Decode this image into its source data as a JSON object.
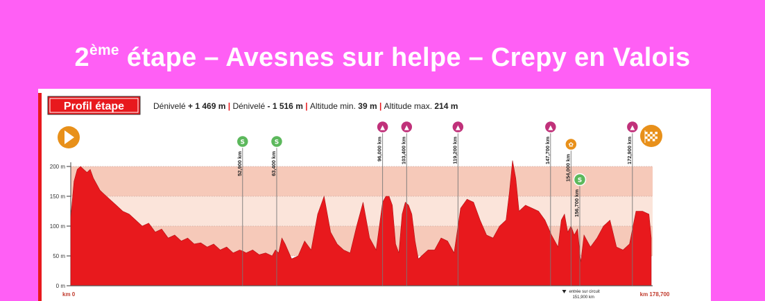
{
  "title": {
    "number": "2",
    "suffix": "ème",
    "rest": " étape – Avesnes sur helpe – Crepy en Valois"
  },
  "colors": {
    "page_background": "#ff5ff5",
    "profile_fill": "#e8191d",
    "band_dark": "#f6c9b9",
    "band_light": "#fbe4da",
    "badge_green": "#5cb85c",
    "badge_pink": "#c0317a",
    "badge_orange": "#e8901a"
  },
  "chart_data": {
    "type": "area",
    "header": {
      "badge": "Profil étape",
      "items": [
        {
          "label": "Dénivelé",
          "sign": "+",
          "value": "1 469 m"
        },
        {
          "label": "Dénivelé",
          "sign": "-",
          "value": "1 516 m"
        },
        {
          "label": "Altitude min.",
          "sign": "",
          "value": "39 m"
        },
        {
          "label": "Altitude max.",
          "sign": "",
          "value": "214 m"
        }
      ]
    },
    "xlim": [
      0,
      178.7
    ],
    "ylim": [
      0,
      200
    ],
    "y_ticks": [
      {
        "value": 0,
        "label": "0 m"
      },
      {
        "value": 50,
        "label": "50 m"
      },
      {
        "value": 100,
        "label": "100 m"
      },
      {
        "value": 150,
        "label": "150 m"
      },
      {
        "value": 200,
        "label": "200 m"
      }
    ],
    "x_start_label": "km 0",
    "x_end_label": "km 178,700",
    "profile": {
      "x": [
        0,
        1,
        2,
        3,
        4,
        5,
        6,
        7,
        8,
        9,
        10,
        12,
        14,
        16,
        18,
        20,
        22,
        24,
        26,
        28,
        30,
        32,
        34,
        36,
        38,
        40,
        42,
        44,
        46,
        48,
        50,
        52,
        53,
        54,
        56,
        58,
        60,
        62,
        63,
        64,
        65,
        66,
        68,
        70,
        72,
        74,
        76,
        78,
        80,
        82,
        84,
        86,
        88,
        90,
        92,
        94,
        96,
        97,
        98,
        99,
        100,
        101,
        102,
        103,
        104,
        105,
        106,
        107,
        108,
        110,
        112,
        114,
        116,
        118,
        120,
        122,
        124,
        126,
        128,
        130,
        132,
        134,
        135,
        136,
        137,
        138,
        140,
        142,
        144,
        146,
        148,
        150,
        151,
        152,
        153,
        154,
        155,
        156,
        157,
        158,
        160,
        162,
        164,
        166,
        168,
        170,
        172,
        174,
        176,
        178,
        178.7
      ],
      "y": [
        115,
        175,
        195,
        200,
        195,
        190,
        195,
        180,
        170,
        160,
        155,
        145,
        135,
        125,
        120,
        110,
        100,
        105,
        90,
        95,
        80,
        85,
        75,
        80,
        70,
        72,
        65,
        70,
        60,
        65,
        55,
        60,
        58,
        55,
        60,
        52,
        55,
        50,
        60,
        55,
        80,
        70,
        45,
        50,
        75,
        60,
        120,
        150,
        90,
        70,
        60,
        55,
        100,
        140,
        80,
        60,
        140,
        150,
        150,
        135,
        70,
        55,
        120,
        140,
        135,
        120,
        75,
        45,
        50,
        60,
        60,
        80,
        75,
        55,
        130,
        145,
        140,
        110,
        85,
        80,
        100,
        110,
        155,
        210,
        180,
        125,
        135,
        130,
        125,
        110,
        85,
        65,
        110,
        120,
        90,
        100,
        85,
        95,
        40,
        85,
        65,
        80,
        100,
        110,
        65,
        60,
        70,
        125,
        125,
        120,
        80
      ]
    },
    "markers": [
      {
        "km": 52.9,
        "label": "52,900 km",
        "icon": "sprint-icon",
        "icon_text": "S"
      },
      {
        "km": 63.4,
        "label": "63,400 km",
        "icon": "sprint-icon",
        "icon_text": "S"
      },
      {
        "km": 96.0,
        "label": "96,000 km",
        "icon": "climb-icon",
        "icon_text": "▲"
      },
      {
        "km": 103.4,
        "label": "103,400 km",
        "icon": "climb-icon",
        "icon_text": "▲"
      },
      {
        "km": 119.2,
        "label": "119,200 km",
        "icon": "climb-icon",
        "icon_text": "▲"
      },
      {
        "km": 147.7,
        "label": "147,700 km",
        "icon": "climb-icon",
        "icon_text": "▲"
      },
      {
        "km": 154.0,
        "label": "154,000 km",
        "icon": "bonus-icon",
        "icon_text": "✿"
      },
      {
        "km": 156.7,
        "label": "156,700 km",
        "icon": "sprint-icon",
        "icon_text": "S"
      },
      {
        "km": 172.9,
        "label": "172,900 km",
        "icon": "climb-icon",
        "icon_text": "▲"
      }
    ],
    "start_icon": "start-play-icon",
    "finish_icon": "finish-checkered-icon",
    "circuit_note": {
      "km": 151.9,
      "line1": "entrée sur circuit",
      "line2": "151,900 km"
    }
  }
}
